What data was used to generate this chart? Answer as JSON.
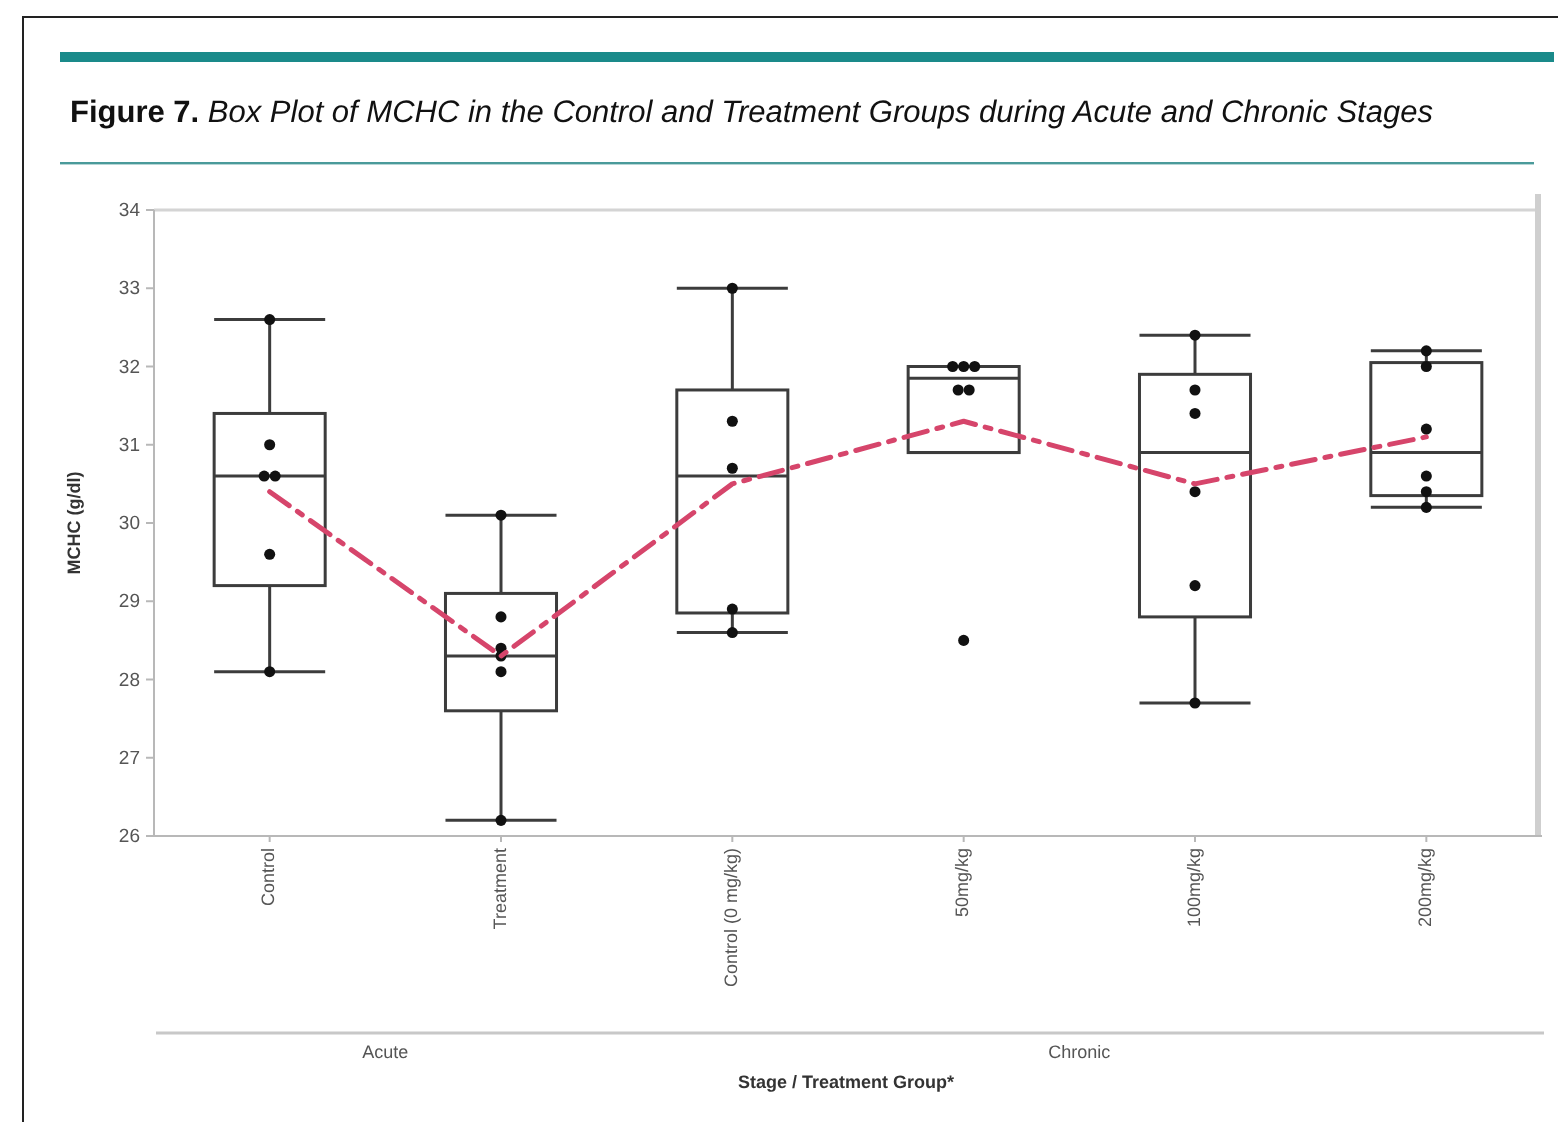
{
  "chart_data": {
    "type": "box",
    "title": "Figure 7. Box Plot of MCHC in the Control and Treatment Groups during Acute and Chronic Stages",
    "xlabel": "Stage / Treatment Group*",
    "ylabel": "MCHC (g/dl)",
    "categories": [
      "Control",
      "Treatment",
      "Control (0 mg/kg)",
      "50mg/kg",
      "100mg/kg",
      "200mg/kg"
    ],
    "ylim": [
      26,
      34
    ],
    "yticks": [
      26,
      27,
      28,
      29,
      30,
      31,
      32,
      33,
      34
    ],
    "grid": false,
    "annotations": [
      "Acute",
      "Chronic"
    ],
    "series": [
      {
        "color": "#3c3c3c",
        "boxes": [
          {
            "low": 28.1,
            "q1": 29.2,
            "median": 30.6,
            "q3": 31.4,
            "high": 32.6
          },
          {
            "low": 26.2,
            "q1": 27.6,
            "median": 28.3,
            "q3": 29.1,
            "high": 30.1
          },
          {
            "low": 28.6,
            "q1": 28.85,
            "median": 30.6,
            "q3": 31.7,
            "high": 33.0
          },
          {
            "low": 30.9,
            "q1": 30.9,
            "median": 31.85,
            "q3": 32.0,
            "high": 32.0
          },
          {
            "low": 27.7,
            "q1": 28.8,
            "median": 30.9,
            "q3": 31.9,
            "high": 32.4
          },
          {
            "low": 30.2,
            "q1": 30.35,
            "median": 30.9,
            "q3": 32.05,
            "high": 32.2
          }
        ]
      },
      {
        "type": "scatter",
        "color": "#111111",
        "marker": "circle",
        "x": [
          "Control",
          "Control",
          "Control",
          "Control",
          "Control",
          "Control",
          "Treatment",
          "Treatment",
          "Treatment",
          "Treatment",
          "Treatment",
          "Treatment",
          "Control (0 mg/kg)",
          "Control (0 mg/kg)",
          "Control (0 mg/kg)",
          "Control (0 mg/kg)",
          "Control (0 mg/kg)",
          "50mg/kg",
          "50mg/kg",
          "50mg/kg",
          "50mg/kg",
          "50mg/kg",
          "50mg/kg",
          "100mg/kg",
          "100mg/kg",
          "100mg/kg",
          "100mg/kg",
          "100mg/kg",
          "100mg/kg",
          "200mg/kg",
          "200mg/kg",
          "200mg/kg",
          "200mg/kg",
          "200mg/kg",
          "200mg/kg"
        ],
        "values": [
          32.6,
          31.0,
          30.6,
          30.6,
          29.6,
          28.1,
          30.1,
          28.8,
          28.4,
          28.3,
          28.1,
          26.2,
          33.0,
          31.3,
          30.7,
          28.9,
          28.6,
          32.0,
          32.0,
          32.0,
          31.7,
          31.7,
          28.5,
          32.4,
          31.7,
          31.4,
          30.4,
          29.2,
          27.7,
          32.2,
          32.0,
          31.2,
          30.6,
          30.4,
          30.2
        ]
      },
      {
        "type": "line",
        "color": "#d6456b",
        "line_style": "dashed",
        "marker": "none",
        "values": [
          30.4,
          28.3,
          30.5,
          31.3,
          30.5,
          31.1
        ]
      }
    ]
  }
}
